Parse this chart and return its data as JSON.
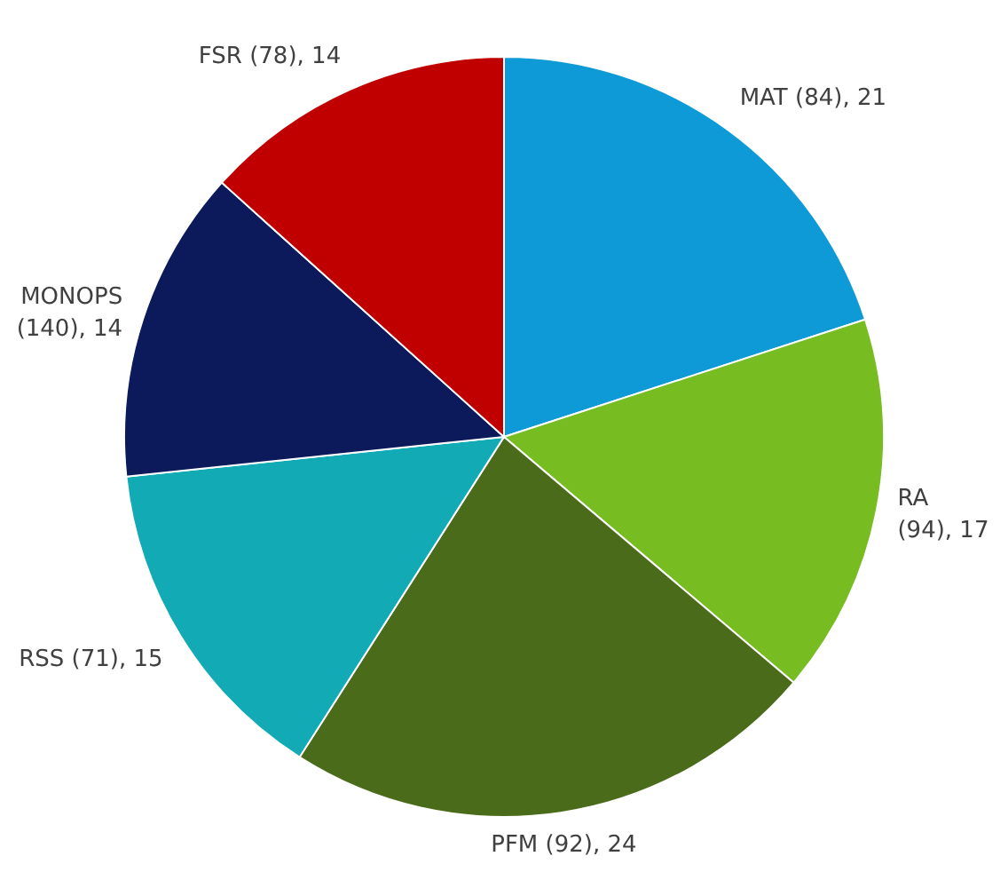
{
  "chart_data": {
    "type": "pie",
    "categories": [
      "MAT (84)",
      "RA (94)",
      "PFM (92)",
      "RSS (71)",
      "MONOPS (140)",
      "FSR (78)"
    ],
    "values": [
      21,
      17,
      24,
      15,
      14,
      14
    ],
    "value_labels": [
      ", 21",
      ", 17",
      ", 24",
      ", 15",
      ", 14",
      ", 14"
    ],
    "colors": [
      "#0e9ad7",
      "#77bc20",
      "#4a6b1a",
      "#11aab5",
      "#0c1a5c",
      "#c00000"
    ]
  }
}
